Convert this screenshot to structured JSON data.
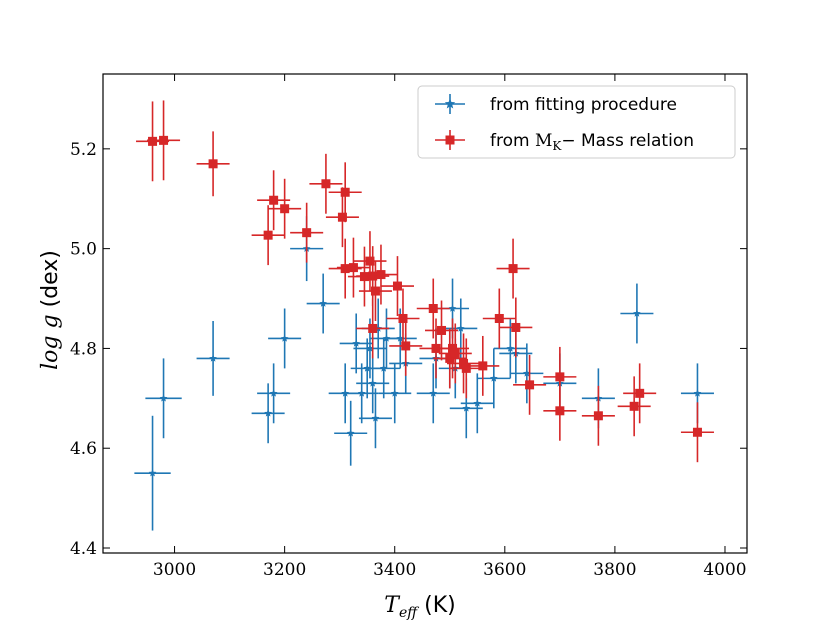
{
  "chart_data": {
    "type": "scatter",
    "xlabel": {
      "symbol": "T",
      "subscript": "eff",
      "unit": " (K)"
    },
    "ylabel": {
      "symbol": "log g",
      "unit": " (dex)"
    },
    "xlim": [
      2870,
      4040
    ],
    "ylim": [
      4.39,
      5.35
    ],
    "xticks": [
      3000,
      3200,
      3400,
      3600,
      3800,
      4000
    ],
    "yticks": [
      4.4,
      4.6,
      4.8,
      5.0,
      5.2
    ],
    "ytick_labels": [
      "4.4",
      "4.6",
      "4.8",
      "5.0",
      "5.2"
    ],
    "legend_position": "top-right",
    "series": [
      {
        "name": "from fitting procedure",
        "color": "#1f77b4",
        "marker": "star",
        "points": [
          {
            "x": 2960,
            "y": 4.55,
            "xerr": 33,
            "yerr": 0.115
          },
          {
            "x": 2980,
            "y": 4.7,
            "xerr": 33,
            "yerr": 0.08
          },
          {
            "x": 3070,
            "y": 4.78,
            "xerr": 30,
            "yerr": 0.075
          },
          {
            "x": 3170,
            "y": 4.67,
            "xerr": 30,
            "yerr": 0.06
          },
          {
            "x": 3180,
            "y": 4.71,
            "xerr": 30,
            "yerr": 0.06
          },
          {
            "x": 3200,
            "y": 4.82,
            "xerr": 30,
            "yerr": 0.06
          },
          {
            "x": 3240,
            "y": 5.0,
            "xerr": 30,
            "yerr": 0.065
          },
          {
            "x": 3270,
            "y": 4.89,
            "xerr": 30,
            "yerr": 0.06
          },
          {
            "x": 3310,
            "y": 4.71,
            "xerr": 30,
            "yerr": 0.06
          },
          {
            "x": 3320,
            "y": 4.63,
            "xerr": 30,
            "yerr": 0.065
          },
          {
            "x": 3330,
            "y": 4.81,
            "xerr": 30,
            "yerr": 0.06
          },
          {
            "x": 3340,
            "y": 4.71,
            "xerr": 30,
            "yerr": 0.06
          },
          {
            "x": 3350,
            "y": 4.76,
            "xerr": 30,
            "yerr": 0.06
          },
          {
            "x": 3355,
            "y": 4.8,
            "xerr": 30,
            "yerr": 0.06
          },
          {
            "x": 3360,
            "y": 4.73,
            "xerr": 30,
            "yerr": 0.06
          },
          {
            "x": 3365,
            "y": 4.66,
            "xerr": 30,
            "yerr": 0.06
          },
          {
            "x": 3370,
            "y": 4.84,
            "xerr": 30,
            "yerr": 0.06
          },
          {
            "x": 3380,
            "y": 4.76,
            "xerr": 30,
            "yerr": 0.06
          },
          {
            "x": 3385,
            "y": 4.82,
            "xerr": 30,
            "yerr": 0.06
          },
          {
            "x": 3400,
            "y": 4.71,
            "xerr": 30,
            "yerr": 0.06
          },
          {
            "x": 3410,
            "y": 4.82,
            "xerr": 30,
            "yerr": 0.06
          },
          {
            "x": 3420,
            "y": 4.77,
            "xerr": 30,
            "yerr": 0.06
          },
          {
            "x": 3470,
            "y": 4.71,
            "xerr": 30,
            "yerr": 0.06
          },
          {
            "x": 3475,
            "y": 4.78,
            "xerr": 30,
            "yerr": 0.06
          },
          {
            "x": 3500,
            "y": 4.78,
            "xerr": 30,
            "yerr": 0.06
          },
          {
            "x": 3505,
            "y": 4.88,
            "xerr": 30,
            "yerr": 0.06
          },
          {
            "x": 3510,
            "y": 4.76,
            "xerr": 30,
            "yerr": 0.06
          },
          {
            "x": 3520,
            "y": 4.84,
            "xerr": 30,
            "yerr": 0.06
          },
          {
            "x": 3530,
            "y": 4.68,
            "xerr": 30,
            "yerr": 0.06
          },
          {
            "x": 3550,
            "y": 4.69,
            "xerr": 30,
            "yerr": 0.06
          },
          {
            "x": 3580,
            "y": 4.74,
            "xerr": 30,
            "yerr": 0.06
          },
          {
            "x": 3610,
            "y": 4.8,
            "xerr": 30,
            "yerr": 0.06
          },
          {
            "x": 3620,
            "y": 4.79,
            "xerr": 30,
            "yerr": 0.06
          },
          {
            "x": 3640,
            "y": 4.75,
            "xerr": 30,
            "yerr": 0.06
          },
          {
            "x": 3700,
            "y": 4.73,
            "xerr": 30,
            "yerr": 0.06
          },
          {
            "x": 3770,
            "y": 4.7,
            "xerr": 30,
            "yerr": 0.06
          },
          {
            "x": 3840,
            "y": 4.87,
            "xerr": 30,
            "yerr": 0.06
          },
          {
            "x": 3950,
            "y": 4.71,
            "xerr": 30,
            "yerr": 0.06
          }
        ]
      },
      {
        "name": "from M_K− Mass relation",
        "legend_label_prefix": "from ",
        "legend_label_math": "M",
        "legend_label_sub": "K",
        "legend_label_suffix": "− Mass relation",
        "color": "#d62728",
        "marker": "square",
        "points": [
          {
            "x": 2960,
            "y": 5.215,
            "xerr": 30,
            "yerr": 0.08
          },
          {
            "x": 2980,
            "y": 5.217,
            "xerr": 30,
            "yerr": 0.08
          },
          {
            "x": 3070,
            "y": 5.17,
            "xerr": 30,
            "yerr": 0.065
          },
          {
            "x": 3170,
            "y": 5.027,
            "xerr": 30,
            "yerr": 0.06
          },
          {
            "x": 3180,
            "y": 5.097,
            "xerr": 30,
            "yerr": 0.06
          },
          {
            "x": 3200,
            "y": 5.08,
            "xerr": 30,
            "yerr": 0.06
          },
          {
            "x": 3240,
            "y": 5.032,
            "xerr": 30,
            "yerr": 0.06
          },
          {
            "x": 3275,
            "y": 5.13,
            "xerr": 30,
            "yerr": 0.06
          },
          {
            "x": 3305,
            "y": 5.063,
            "xerr": 30,
            "yerr": 0.06
          },
          {
            "x": 3310,
            "y": 5.113,
            "xerr": 30,
            "yerr": 0.06
          },
          {
            "x": 3310,
            "y": 4.96,
            "xerr": 30,
            "yerr": 0.06
          },
          {
            "x": 3325,
            "y": 4.962,
            "xerr": 30,
            "yerr": 0.06
          },
          {
            "x": 3345,
            "y": 4.944,
            "xerr": 30,
            "yerr": 0.06
          },
          {
            "x": 3355,
            "y": 4.975,
            "xerr": 30,
            "yerr": 0.06
          },
          {
            "x": 3360,
            "y": 4.945,
            "xerr": 30,
            "yerr": 0.06
          },
          {
            "x": 3365,
            "y": 4.915,
            "xerr": 30,
            "yerr": 0.06
          },
          {
            "x": 3375,
            "y": 4.948,
            "xerr": 30,
            "yerr": 0.06
          },
          {
            "x": 3360,
            "y": 4.84,
            "xerr": 30,
            "yerr": 0.06
          },
          {
            "x": 3405,
            "y": 4.925,
            "xerr": 30,
            "yerr": 0.06
          },
          {
            "x": 3415,
            "y": 4.86,
            "xerr": 30,
            "yerr": 0.06
          },
          {
            "x": 3420,
            "y": 4.805,
            "xerr": 30,
            "yerr": 0.06
          },
          {
            "x": 3470,
            "y": 4.88,
            "xerr": 30,
            "yerr": 0.06
          },
          {
            "x": 3475,
            "y": 4.8,
            "xerr": 30,
            "yerr": 0.06
          },
          {
            "x": 3485,
            "y": 4.836,
            "xerr": 30,
            "yerr": 0.06
          },
          {
            "x": 3500,
            "y": 4.78,
            "xerr": 30,
            "yerr": 0.06
          },
          {
            "x": 3505,
            "y": 4.8,
            "xerr": 30,
            "yerr": 0.06
          },
          {
            "x": 3510,
            "y": 4.79,
            "xerr": 30,
            "yerr": 0.06
          },
          {
            "x": 3525,
            "y": 4.77,
            "xerr": 30,
            "yerr": 0.06
          },
          {
            "x": 3530,
            "y": 4.76,
            "xerr": 30,
            "yerr": 0.06
          },
          {
            "x": 3560,
            "y": 4.765,
            "xerr": 30,
            "yerr": 0.06
          },
          {
            "x": 3590,
            "y": 4.86,
            "xerr": 30,
            "yerr": 0.06
          },
          {
            "x": 3615,
            "y": 4.96,
            "xerr": 30,
            "yerr": 0.06
          },
          {
            "x": 3620,
            "y": 4.842,
            "xerr": 30,
            "yerr": 0.06
          },
          {
            "x": 3645,
            "y": 4.727,
            "xerr": 30,
            "yerr": 0.06
          },
          {
            "x": 3700,
            "y": 4.743,
            "xerr": 30,
            "yerr": 0.06
          },
          {
            "x": 3700,
            "y": 4.675,
            "xerr": 30,
            "yerr": 0.06
          },
          {
            "x": 3770,
            "y": 4.665,
            "xerr": 30,
            "yerr": 0.06
          },
          {
            "x": 3835,
            "y": 4.684,
            "xerr": 30,
            "yerr": 0.06
          },
          {
            "x": 3845,
            "y": 4.71,
            "xerr": 30,
            "yerr": 0.06
          },
          {
            "x": 3950,
            "y": 4.632,
            "xerr": 30,
            "yerr": 0.06
          }
        ]
      }
    ]
  }
}
